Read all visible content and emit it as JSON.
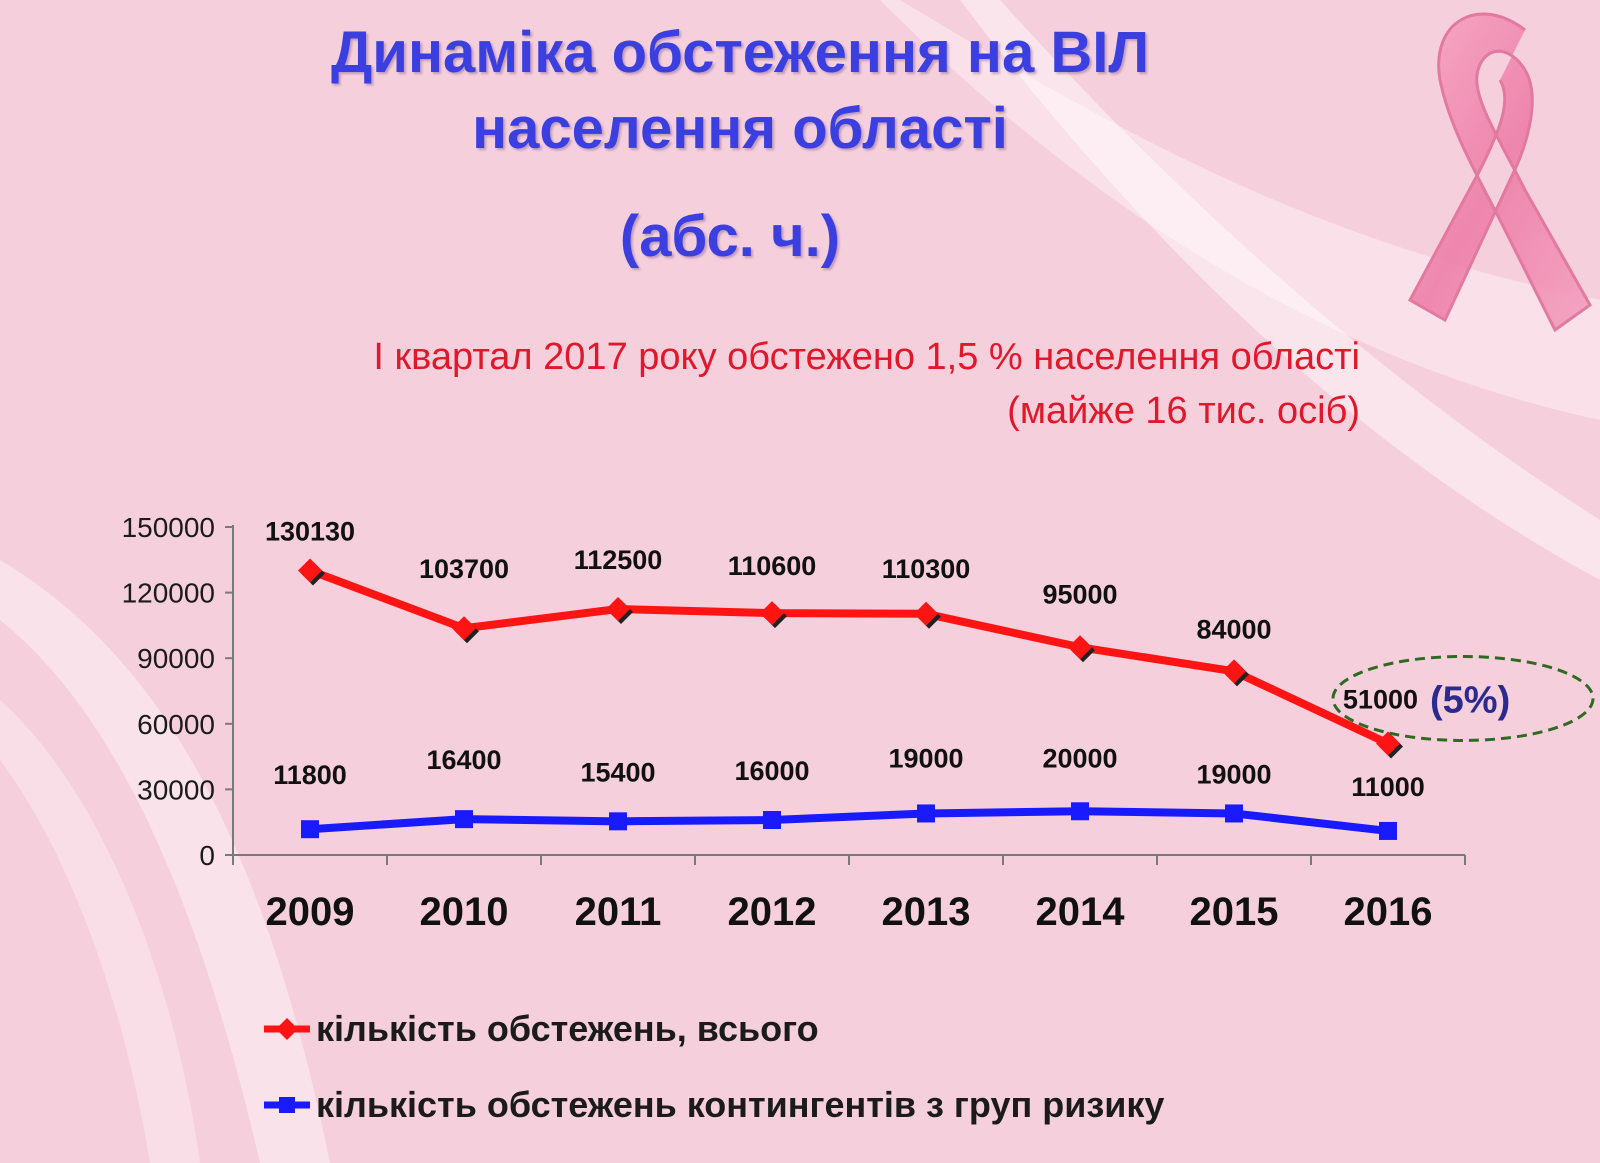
{
  "header": {
    "title_line1": "Динаміка обстеження на ВІЛ",
    "title_line2": "населення області",
    "title_line3": "(абс. ч.)",
    "subtitle_line1": "І квартал 2017 року обстежено 1,5 % населення області",
    "subtitle_line2": "(майже 16 тис. осіб)"
  },
  "colors": {
    "title": "#3b3fe0",
    "subtitle": "#e0182a",
    "series_total": "#ff1414",
    "series_risk": "#1a1aff",
    "highlight_ellipse": "#2e6b21",
    "highlight_text": "#2b2b8f",
    "background": "#f6cfdd"
  },
  "chart_data": {
    "type": "line",
    "categories": [
      "2009",
      "2010",
      "2011",
      "2012",
      "2013",
      "2014",
      "2015",
      "2016"
    ],
    "series": [
      {
        "name": "кількість обстежень, всього",
        "values": [
          130130,
          103700,
          112500,
          110600,
          110300,
          95000,
          84000,
          51000
        ],
        "marker": "diamond"
      },
      {
        "name": "кількість обстежень контингентів з  груп ризику",
        "values": [
          11800,
          16400,
          15400,
          16000,
          19000,
          20000,
          19000,
          11000
        ],
        "marker": "square"
      }
    ],
    "y_ticks": [
      "0",
      "30000",
      "60000",
      "90000",
      "120000",
      "150000"
    ],
    "ylim": [
      0,
      150000
    ],
    "grid": false,
    "legend_position": "bottom-left",
    "annotation": {
      "category": "2016",
      "text": "(5%)"
    }
  }
}
